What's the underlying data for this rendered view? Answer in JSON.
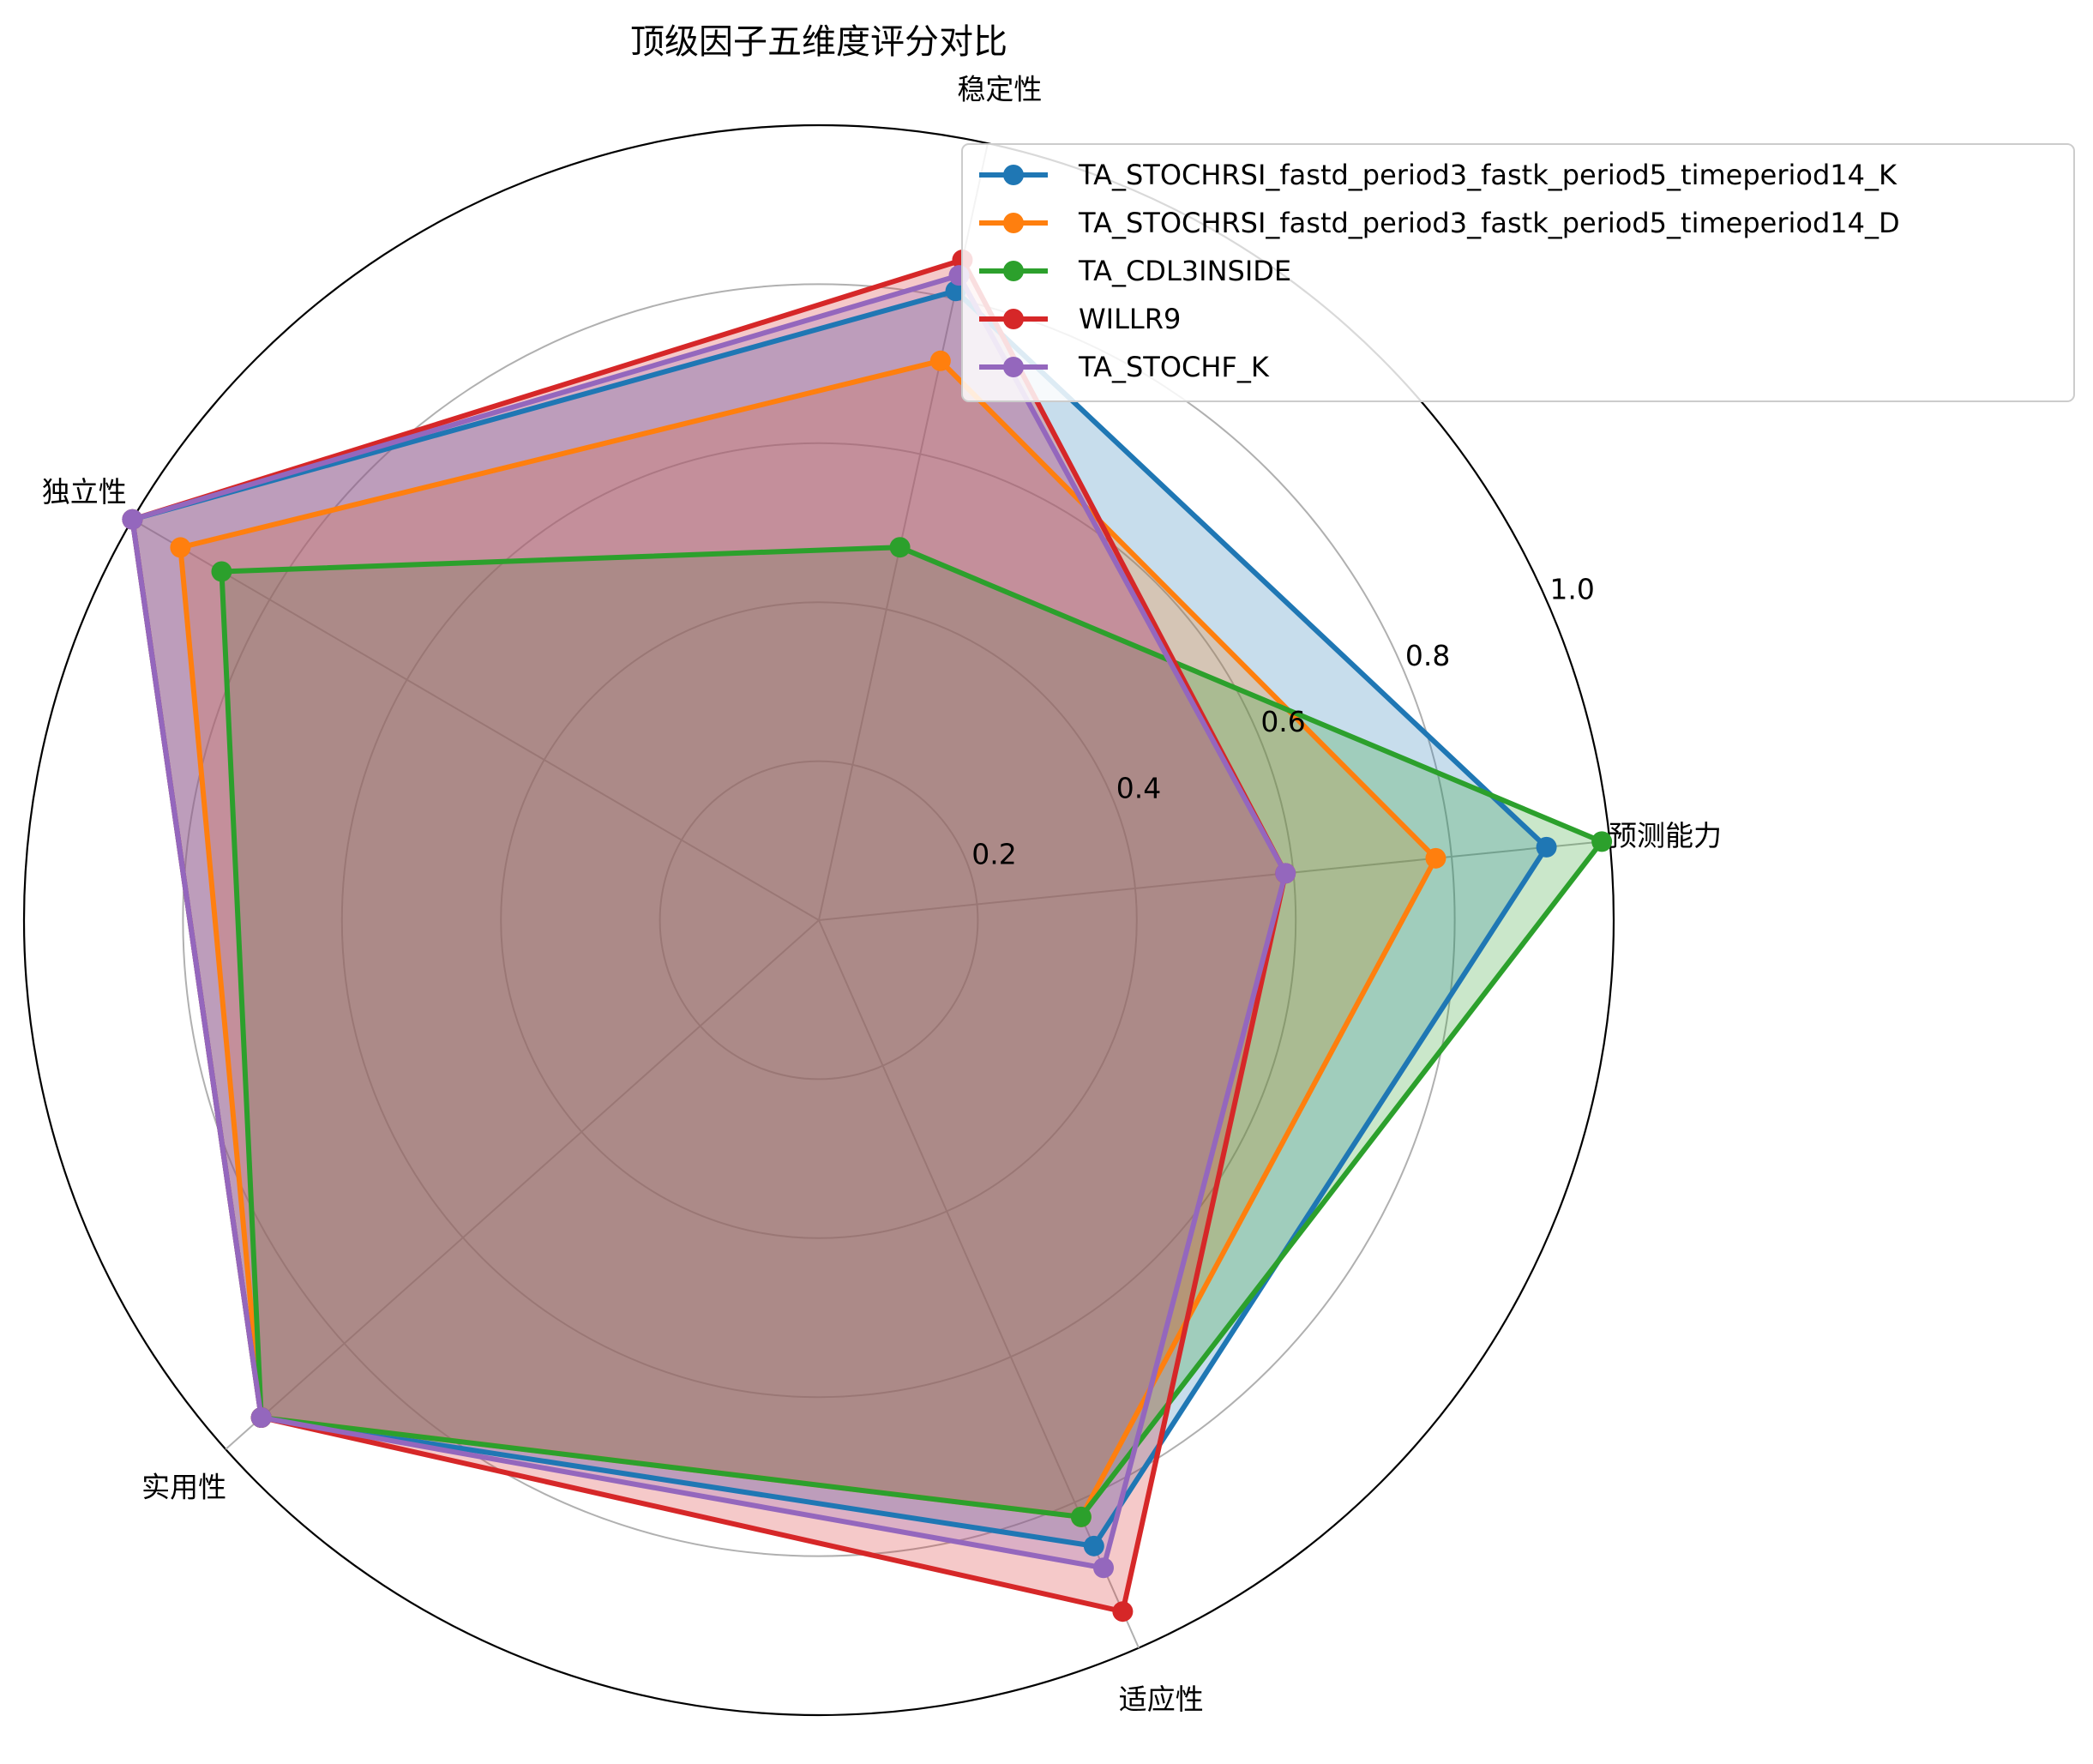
{
  "chart_data": {
    "type": "radar",
    "title": "顶级因子五维度评分对比",
    "axes": [
      "预测能力",
      "稳定性",
      "独立性",
      "实用性",
      "适应性"
    ],
    "rlim": [
      0,
      1.0
    ],
    "rticks": [
      0.2,
      0.4,
      0.6,
      0.8,
      1.0
    ],
    "rtick_labels": [
      "0.2",
      "0.4",
      "0.6",
      "0.8",
      "1.0"
    ],
    "grid": true,
    "legend_position": "top-right",
    "series": [
      {
        "name": "TA_STOCHRSI_fastd_period3_fastk_period5_timeperiod14_K",
        "color": "#1f77b4",
        "values": [
          0.92,
          0.81,
          1.0,
          0.94,
          0.86
        ]
      },
      {
        "name": "TA_STOCHRSI_fastd_period3_fastk_period5_timeperiod14_D",
        "color": "#ff7f0e",
        "values": [
          0.78,
          0.72,
          0.93,
          0.94,
          0.82
        ]
      },
      {
        "name": "TA_CDL3INSIDE",
        "color": "#2ca02c",
        "values": [
          0.99,
          0.48,
          0.87,
          0.94,
          0.82
        ]
      },
      {
        "name": "WILLR9",
        "color": "#d62728",
        "values": [
          0.59,
          0.85,
          1.0,
          0.94,
          0.95
        ]
      },
      {
        "name": "TA_STOCHF_K",
        "color": "#9467bd",
        "values": [
          0.59,
          0.83,
          1.0,
          0.94,
          0.89
        ]
      }
    ]
  }
}
